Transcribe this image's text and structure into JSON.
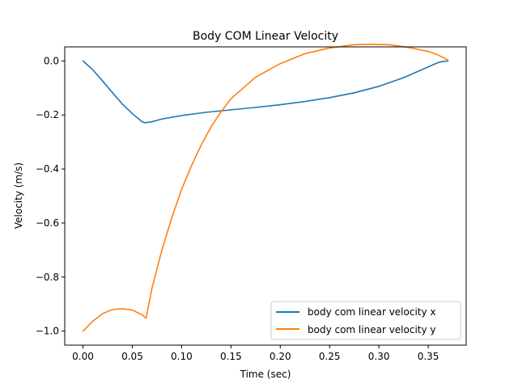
{
  "chart_data": {
    "type": "line",
    "title": "Body COM Linear Velocity",
    "xlabel": "Time (sec)",
    "ylabel": "Velocity (m/s)",
    "xlim": [
      -0.0185,
      0.3885
    ],
    "ylim": [
      -1.052,
      0.052
    ],
    "xticks": [
      0.0,
      0.05,
      0.1,
      0.15,
      0.2,
      0.25,
      0.3,
      0.35
    ],
    "xtick_labels": [
      "0.00",
      "0.05",
      "0.10",
      "0.15",
      "0.20",
      "0.25",
      "0.30",
      "0.35"
    ],
    "yticks": [
      0.0,
      -0.2,
      -0.4,
      -0.6,
      -0.8,
      -1.0
    ],
    "ytick_labels": [
      "0.0",
      "−0.2",
      "−0.4",
      "−0.6",
      "−0.8",
      "−1.0"
    ],
    "grid": false,
    "legend_position": "lower-right",
    "series": [
      {
        "name": "body com linear velocity x",
        "color": "#1f77b4",
        "x": [
          0.0,
          0.01,
          0.02,
          0.03,
          0.04,
          0.05,
          0.06,
          0.063,
          0.07,
          0.08,
          0.1,
          0.125,
          0.15,
          0.175,
          0.2,
          0.225,
          0.25,
          0.275,
          0.3,
          0.325,
          0.35,
          0.36,
          0.365,
          0.37
        ],
        "y": [
          0.0,
          -0.033,
          -0.075,
          -0.118,
          -0.16,
          -0.195,
          -0.225,
          -0.229,
          -0.225,
          -0.215,
          -0.202,
          -0.19,
          -0.181,
          -0.172,
          -0.162,
          -0.15,
          -0.136,
          -0.118,
          -0.094,
          -0.062,
          -0.022,
          -0.006,
          -0.002,
          0.0
        ]
      },
      {
        "name": "body com linear velocity y",
        "color": "#ff7f0e",
        "x": [
          0.0,
          0.01,
          0.02,
          0.03,
          0.04,
          0.05,
          0.06,
          0.064,
          0.07,
          0.08,
          0.09,
          0.1,
          0.11,
          0.12,
          0.13,
          0.14,
          0.15,
          0.175,
          0.2,
          0.225,
          0.25,
          0.275,
          0.29,
          0.31,
          0.33,
          0.35,
          0.36,
          0.37
        ],
        "y": [
          -1.0,
          -0.963,
          -0.935,
          -0.92,
          -0.917,
          -0.922,
          -0.94,
          -0.952,
          -0.84,
          -0.7,
          -0.58,
          -0.475,
          -0.388,
          -0.31,
          -0.243,
          -0.188,
          -0.14,
          -0.06,
          -0.01,
          0.027,
          0.048,
          0.06,
          0.062,
          0.06,
          0.05,
          0.035,
          0.022,
          0.004
        ]
      }
    ]
  }
}
